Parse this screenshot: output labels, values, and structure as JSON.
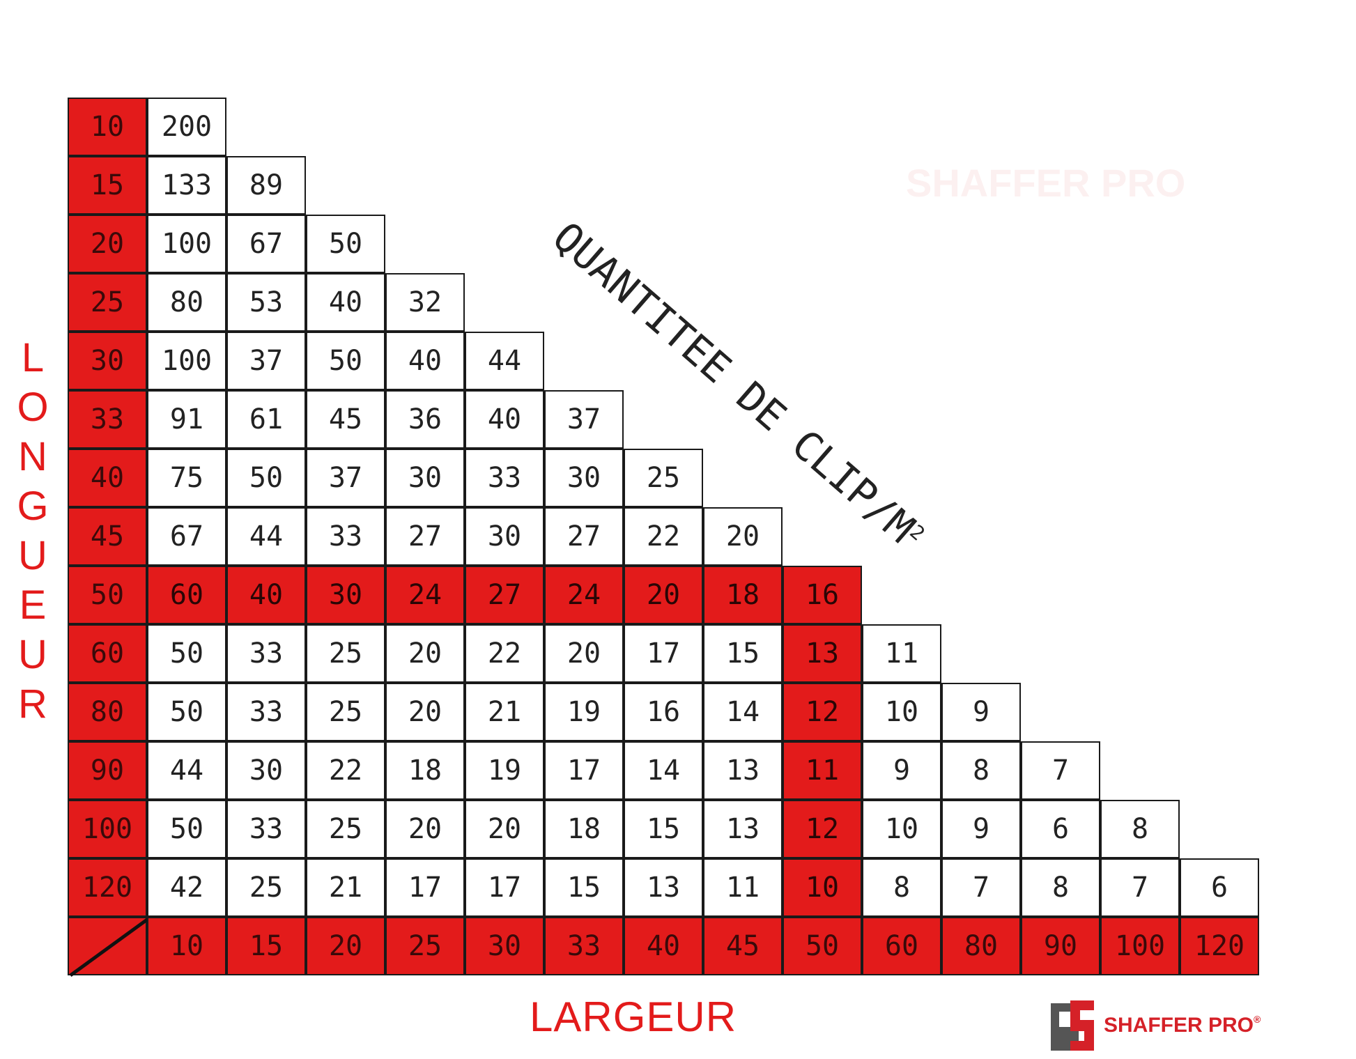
{
  "title": "QUANTITEE DE CLIP/M",
  "title_superscript": "2",
  "row_axis_label": "LONGUEUR",
  "col_axis_label": "LARGEUR",
  "brand": "SHAFFER PRO",
  "brand_mark": "®",
  "watermark": "SHAFFER PRO",
  "colors": {
    "accent": "#e31b1b",
    "grid": "#1a1a1a",
    "text": "#222222"
  },
  "highlight": {
    "row": "50",
    "column": "50"
  },
  "column_headers": [
    "10",
    "15",
    "20",
    "25",
    "30",
    "33",
    "40",
    "45",
    "50",
    "60",
    "80",
    "90",
    "100",
    "120"
  ],
  "rows": [
    {
      "label": "10",
      "values": [
        "200"
      ]
    },
    {
      "label": "15",
      "values": [
        "133",
        "89"
      ]
    },
    {
      "label": "20",
      "values": [
        "100",
        "67",
        "50"
      ]
    },
    {
      "label": "25",
      "values": [
        "80",
        "53",
        "40",
        "32"
      ]
    },
    {
      "label": "30",
      "values": [
        "100",
        "37",
        "50",
        "40",
        "44"
      ]
    },
    {
      "label": "33",
      "values": [
        "91",
        "61",
        "45",
        "36",
        "40",
        "37"
      ]
    },
    {
      "label": "40",
      "values": [
        "75",
        "50",
        "37",
        "30",
        "33",
        "30",
        "25"
      ]
    },
    {
      "label": "45",
      "values": [
        "67",
        "44",
        "33",
        "27",
        "30",
        "27",
        "22",
        "20"
      ]
    },
    {
      "label": "50",
      "values": [
        "60",
        "40",
        "30",
        "24",
        "27",
        "24",
        "20",
        "18",
        "16"
      ]
    },
    {
      "label": "60",
      "values": [
        "50",
        "33",
        "25",
        "20",
        "22",
        "20",
        "17",
        "15",
        "13",
        "11"
      ]
    },
    {
      "label": "80",
      "values": [
        "50",
        "33",
        "25",
        "20",
        "21",
        "19",
        "16",
        "14",
        "12",
        "10",
        "9"
      ]
    },
    {
      "label": "90",
      "values": [
        "44",
        "30",
        "22",
        "18",
        "19",
        "17",
        "14",
        "13",
        "11",
        "9",
        "8",
        "7"
      ]
    },
    {
      "label": "100",
      "values": [
        "50",
        "33",
        "25",
        "20",
        "20",
        "18",
        "15",
        "13",
        "12",
        "10",
        "9",
        "6",
        "8"
      ]
    },
    {
      "label": "120",
      "values": [
        "42",
        "25",
        "21",
        "17",
        "17",
        "15",
        "13",
        "11",
        "10",
        "8",
        "7",
        "8",
        "7",
        "6"
      ]
    }
  ]
}
